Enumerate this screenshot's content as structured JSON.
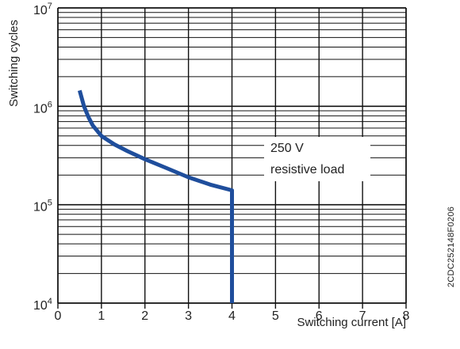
{
  "figure_code": "2CDC252148F0206",
  "chart_data": {
    "type": "line",
    "xlabel": "Switching current [A]",
    "ylabel": "Switching cycles",
    "xlim": [
      0,
      8
    ],
    "ylim": [
      10000,
      10000000
    ],
    "yscale": "log",
    "grid": true,
    "x_ticks": [
      "0",
      "1",
      "2",
      "3",
      "4",
      "5",
      "6",
      "7",
      "8"
    ],
    "y_ticks": [
      {
        "base": "10",
        "exp": "4",
        "value": 10000
      },
      {
        "base": "10",
        "exp": "5",
        "value": 100000
      },
      {
        "base": "10",
        "exp": "6",
        "value": 1000000
      },
      {
        "base": "10",
        "exp": "7",
        "value": 10000000
      }
    ],
    "annotation": [
      "250 V",
      "resistive load"
    ],
    "colors": {
      "curve": "#1f4e9c",
      "grid": "#111111"
    },
    "series": [
      {
        "points": [
          {
            "x": 0.5,
            "y": 1450000
          },
          {
            "x": 0.6,
            "y": 1000000
          },
          {
            "x": 0.7,
            "y": 780000
          },
          {
            "x": 0.8,
            "y": 640000
          },
          {
            "x": 1.0,
            "y": 500000
          },
          {
            "x": 1.3,
            "y": 410000
          },
          {
            "x": 1.6,
            "y": 350000
          },
          {
            "x": 2.0,
            "y": 290000
          },
          {
            "x": 2.5,
            "y": 235000
          },
          {
            "x": 3.0,
            "y": 190000
          },
          {
            "x": 3.5,
            "y": 160000
          },
          {
            "x": 4.0,
            "y": 140000
          },
          {
            "x": 4.0,
            "y": 10000
          }
        ]
      }
    ]
  }
}
